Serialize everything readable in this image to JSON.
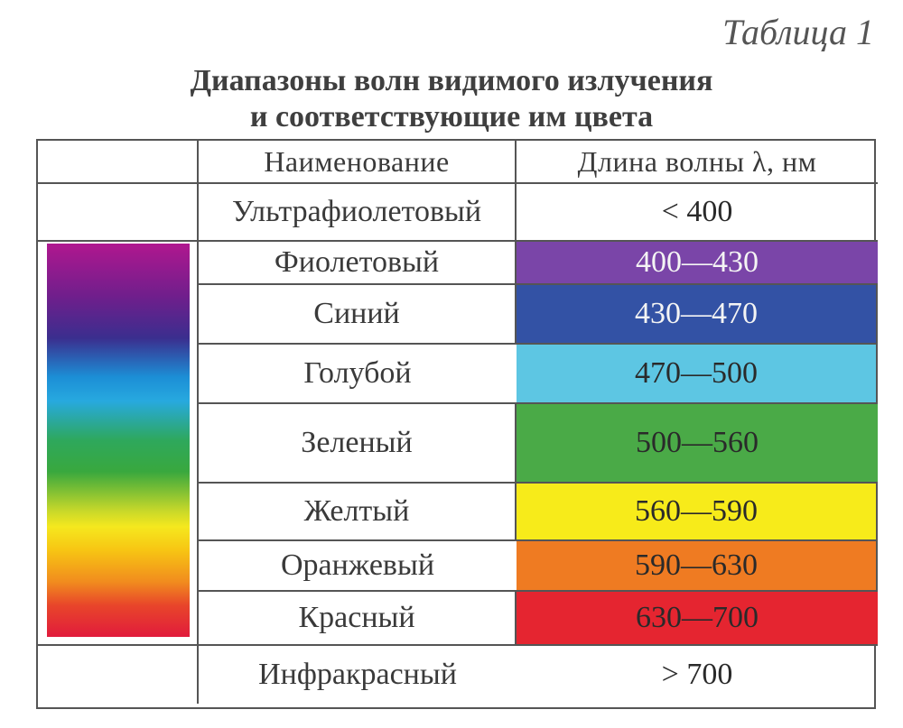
{
  "table_label": "Таблица 1",
  "title": {
    "line1": "Диапазоны волн видимого излучения",
    "line2": "и соответствующие им цвета"
  },
  "header": {
    "name": "Наименование",
    "wavelength": "Длина волны λ, нм"
  },
  "rows": [
    {
      "name": "Ультрафиолетовый",
      "range": "< 400",
      "color": "#ffffff",
      "text_color": "#2a2a2a"
    },
    {
      "name": "Фиолетовый",
      "range": "400—430",
      "color": "#7a45a8",
      "text_color": "#f4f4f4"
    },
    {
      "name": "Синий",
      "range": "430—470",
      "color": "#3352a5",
      "text_color": "#f4f4f4"
    },
    {
      "name": "Голубой",
      "range": "470—500",
      "color": "#5dc6e3",
      "text_color": "#2a2a2a"
    },
    {
      "name": "Зеленый",
      "range": "500—560",
      "color": "#4aaa47",
      "text_color": "#2a2a2a"
    },
    {
      "name": "Желтый",
      "range": "560—590",
      "color": "#f7eb1a",
      "text_color": "#2a2a2a"
    },
    {
      "name": "Оранжевый",
      "range": "590—630",
      "color": "#ef7b22",
      "text_color": "#2a2a2a"
    },
    {
      "name": "Красный",
      "range": "630—700",
      "color": "#e52530",
      "text_color": "#2a2a2a"
    },
    {
      "name": "Инфракрасный",
      "range": "> 700",
      "color": "#ffffff",
      "text_color": "#2a2a2a"
    }
  ]
}
